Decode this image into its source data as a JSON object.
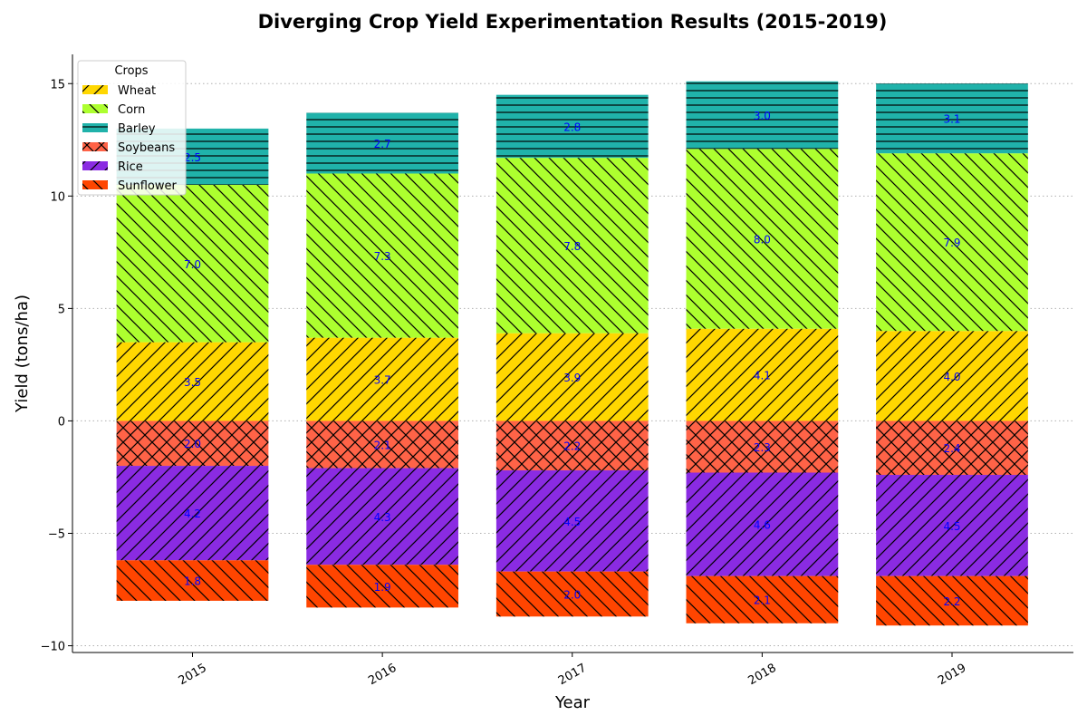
{
  "chart_data": {
    "type": "bar",
    "title": "Diverging Crop Yield Experimentation Results (2015-2019)",
    "xlabel": "Year",
    "ylabel": "Yield (tons/ha)",
    "categories": [
      "2015",
      "2016",
      "2017",
      "2018",
      "2019"
    ],
    "ylim": [
      -10.3,
      16.3
    ],
    "yticks": [
      -10,
      -5,
      0,
      5,
      10,
      15
    ],
    "ytick_labels": [
      "−10",
      "−5",
      "0",
      "5",
      "10",
      "15"
    ],
    "grid": "y",
    "legend_title": "Crops",
    "legend_position": "top-left",
    "positive_series": [
      {
        "name": "Wheat",
        "values": [
          3.5,
          3.7,
          3.9,
          4.1,
          4.0
        ],
        "color": "#ffd700",
        "hatch": "forward"
      },
      {
        "name": "Corn",
        "values": [
          7.0,
          7.3,
          7.8,
          8.0,
          7.9
        ],
        "color": "#adff2f",
        "hatch": "backward"
      },
      {
        "name": "Barley",
        "values": [
          2.5,
          2.7,
          2.8,
          3.0,
          3.1
        ],
        "color": "#20b2aa",
        "hatch": "horizontal"
      }
    ],
    "negative_series": [
      {
        "name": "Soybeans",
        "values": [
          2.0,
          2.1,
          2.2,
          2.3,
          2.4
        ],
        "color": "#ff6347",
        "hatch": "cross"
      },
      {
        "name": "Rice",
        "values": [
          4.2,
          4.3,
          4.5,
          4.6,
          4.5
        ],
        "color": "#8a2be2",
        "hatch": "forward"
      },
      {
        "name": "Sunflower",
        "values": [
          1.8,
          1.9,
          2.0,
          2.1,
          2.2
        ],
        "color": "#ff4500",
        "hatch": "backward"
      }
    ]
  }
}
